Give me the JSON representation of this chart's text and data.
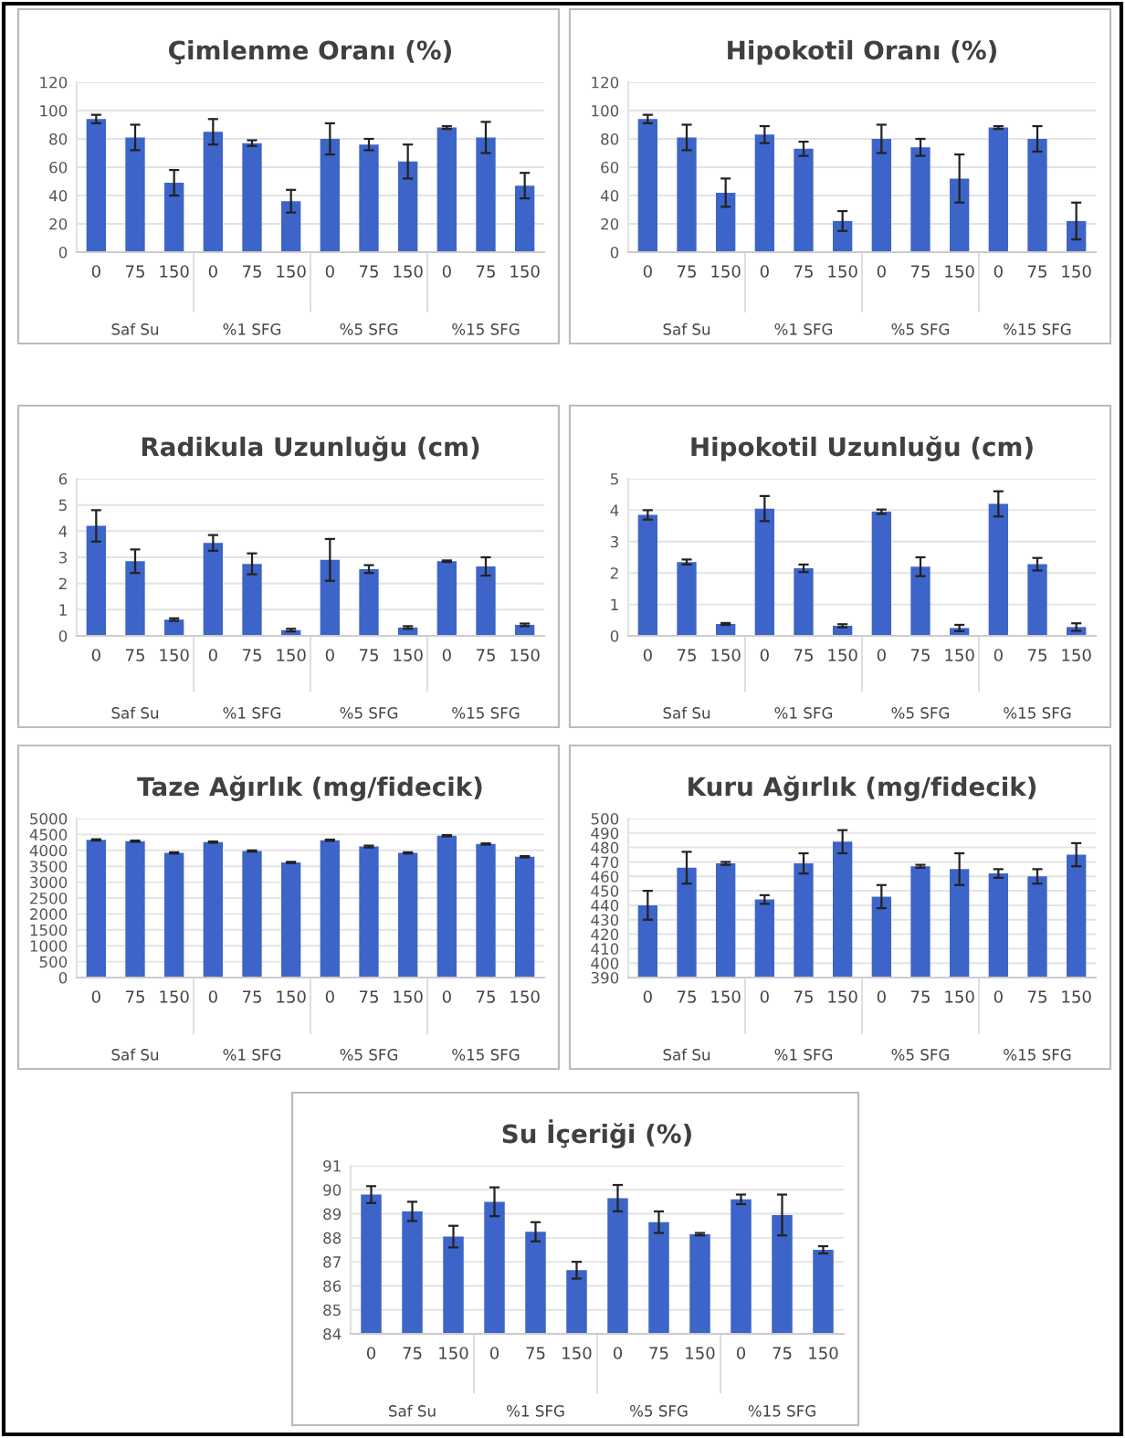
{
  "chart_data": [
    {
      "type": "bar",
      "title": "Çimlenme Oranı (%)",
      "categories": [
        "0",
        "75",
        "150",
        "0",
        "75",
        "150",
        "0",
        "75",
        "150",
        "0",
        "75",
        "150"
      ],
      "values": [
        94,
        81,
        49,
        85,
        77,
        36,
        80,
        76,
        64,
        88,
        81,
        47
      ],
      "errors": [
        3,
        9,
        9,
        9,
        2,
        8,
        11,
        4,
        12,
        1,
        11,
        9
      ],
      "color": "#3d64c8",
      "ylim": [
        0,
        120
      ],
      "yticks": [
        0,
        20,
        40,
        60,
        80,
        100,
        120
      ],
      "grid": "y",
      "annotations": [
        "Saf Su",
        "%1 SFG",
        "%5 SFG",
        "%15 SFG"
      ]
    },
    {
      "type": "bar",
      "title": "Hipokotil Oranı (%)",
      "categories": [
        "0",
        "75",
        "150",
        "0",
        "75",
        "150",
        "0",
        "75",
        "150",
        "0",
        "75",
        "150"
      ],
      "values": [
        94,
        81,
        42,
        83,
        73,
        22,
        80,
        74,
        52,
        88,
        80,
        22
      ],
      "errors": [
        3,
        9,
        10,
        6,
        5,
        7,
        10,
        6,
        17,
        1,
        9,
        13
      ],
      "color": "#3d64c8",
      "ylim": [
        0,
        120
      ],
      "yticks": [
        0,
        20,
        40,
        60,
        80,
        100,
        120
      ],
      "grid": "y",
      "annotations": [
        "Saf Su",
        "%1 SFG",
        "%5 SFG",
        "%15 SFG"
      ]
    },
    {
      "type": "bar",
      "title": "Radikula Uzunluğu (cm)",
      "categories": [
        "0",
        "75",
        "150",
        "0",
        "75",
        "150",
        "0",
        "75",
        "150",
        "0",
        "75",
        "150"
      ],
      "values": [
        4.2,
        2.85,
        0.62,
        3.55,
        2.75,
        0.22,
        2.9,
        2.55,
        0.32,
        2.85,
        2.65,
        0.42
      ],
      "errors": [
        0.6,
        0.45,
        0.05,
        0.3,
        0.4,
        0.05,
        0.8,
        0.15,
        0.05,
        0.03,
        0.35,
        0.05
      ],
      "color": "#3d64c8",
      "ylim": [
        0,
        6
      ],
      "yticks": [
        0,
        1,
        2,
        3,
        4,
        5,
        6
      ],
      "grid": "y",
      "annotations": [
        "Saf Su",
        "%1 SFG",
        "%5 SFG",
        "%15 SFG"
      ]
    },
    {
      "type": "bar",
      "title": "Hipokotil Uzunluğu (cm)",
      "categories": [
        "0",
        "75",
        "150",
        "0",
        "75",
        "150",
        "0",
        "75",
        "150",
        "0",
        "75",
        "150"
      ],
      "values": [
        3.85,
        2.35,
        0.38,
        4.05,
        2.15,
        0.32,
        3.95,
        2.2,
        0.25,
        4.2,
        2.28,
        0.28
      ],
      "errors": [
        0.15,
        0.08,
        0.03,
        0.4,
        0.12,
        0.05,
        0.07,
        0.3,
        0.1,
        0.4,
        0.2,
        0.12
      ],
      "color": "#3d64c8",
      "ylim": [
        0,
        5
      ],
      "yticks": [
        0,
        1,
        2,
        3,
        4,
        5
      ],
      "grid": "y",
      "annotations": [
        "Saf Su",
        "%1 SFG",
        "%5 SFG",
        "%15 SFG"
      ]
    },
    {
      "type": "bar",
      "title": "Taze Ağırlık (mg/fidecik)",
      "categories": [
        "0",
        "75",
        "150",
        "0",
        "75",
        "150",
        "0",
        "75",
        "150",
        "0",
        "75",
        "150"
      ],
      "values": [
        4330,
        4290,
        3920,
        4260,
        3980,
        3620,
        4320,
        4120,
        3920,
        4460,
        4200,
        3800
      ],
      "errors": [
        20,
        20,
        20,
        20,
        20,
        20,
        20,
        30,
        20,
        20,
        20,
        20
      ],
      "color": "#3d64c8",
      "ylim": [
        0,
        5000
      ],
      "yticks": [
        0,
        500,
        1000,
        1500,
        2000,
        2500,
        3000,
        3500,
        4000,
        4500,
        5000
      ],
      "grid": "y",
      "annotations": [
        "Saf Su",
        "%1 SFG",
        "%5 SFG",
        "%15 SFG"
      ]
    },
    {
      "type": "bar",
      "title": "Kuru Ağırlık (mg/fidecik)",
      "categories": [
        "0",
        "75",
        "150",
        "0",
        "75",
        "150",
        "0",
        "75",
        "150",
        "0",
        "75",
        "150"
      ],
      "values": [
        440,
        466,
        469,
        444,
        469,
        484,
        446,
        467,
        465,
        462,
        460,
        475
      ],
      "errors": [
        10,
        11,
        1,
        3,
        7,
        8,
        8,
        1,
        11,
        3,
        5,
        8
      ],
      "color": "#3d64c8",
      "ylim": [
        390,
        500
      ],
      "yticks": [
        390,
        400,
        410,
        420,
        430,
        440,
        450,
        460,
        470,
        480,
        490,
        500
      ],
      "grid": "y",
      "annotations": [
        "Saf Su",
        "%1 SFG",
        "%5 SFG",
        "%15 SFG"
      ]
    },
    {
      "type": "bar",
      "title": "Su İçeriği (%)",
      "categories": [
        "0",
        "75",
        "150",
        "0",
        "75",
        "150",
        "0",
        "75",
        "150",
        "0",
        "75",
        "150"
      ],
      "values": [
        89.8,
        89.1,
        88.05,
        89.5,
        88.25,
        86.65,
        89.65,
        88.65,
        88.15,
        89.6,
        88.95,
        87.5
      ],
      "errors": [
        0.35,
        0.4,
        0.45,
        0.6,
        0.4,
        0.35,
        0.55,
        0.45,
        0.05,
        0.2,
        0.85,
        0.15
      ],
      "color": "#3d64c8",
      "ylim": [
        84,
        91
      ],
      "yticks": [
        84,
        85,
        86,
        87,
        88,
        89,
        90,
        91
      ],
      "grid": "y",
      "annotations": [
        "Saf Su",
        "%1 SFG",
        "%5 SFG",
        "%15 SFG"
      ]
    }
  ]
}
